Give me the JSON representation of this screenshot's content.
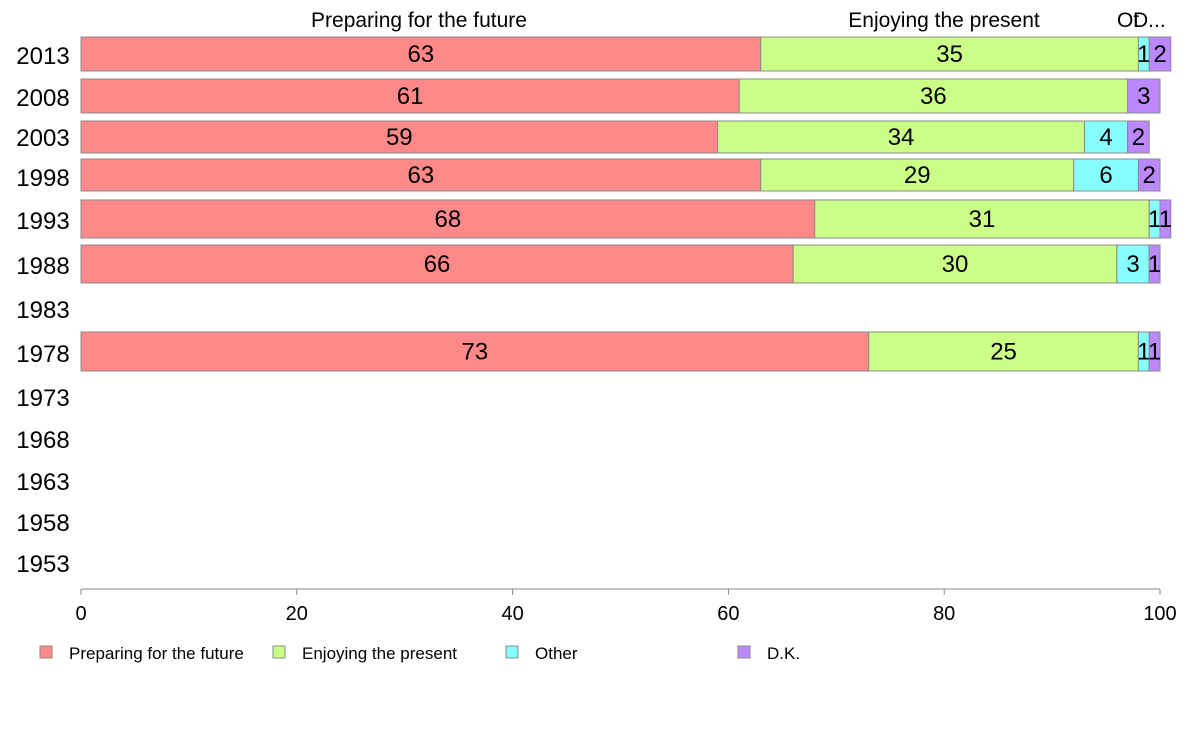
{
  "chart_data": {
    "type": "bar",
    "orientation": "horizontal",
    "stacked": true,
    "categories": [
      "2013",
      "2008",
      "2003",
      "1998",
      "1993",
      "1988",
      "1983",
      "1978",
      "1973",
      "1968",
      "1963",
      "1958",
      "1953"
    ],
    "series": [
      {
        "name": "Preparing for the future",
        "color": "#ff8888",
        "values": [
          63,
          61,
          59,
          63,
          68,
          66,
          null,
          73,
          null,
          null,
          null,
          null,
          null
        ]
      },
      {
        "name": "Enjoying the present",
        "color": "#ccff88",
        "values": [
          35,
          36,
          34,
          29,
          31,
          30,
          null,
          25,
          null,
          null,
          null,
          null,
          null
        ]
      },
      {
        "name": "Other",
        "color": "#88ffff",
        "values": [
          1,
          null,
          4,
          6,
          1,
          3,
          null,
          1,
          null,
          null,
          null,
          null,
          null
        ]
      },
      {
        "name": "D.K.",
        "color": "#bb88ff",
        "values": [
          2,
          3,
          2,
          2,
          1,
          1,
          null,
          1,
          null,
          null,
          null,
          null,
          null
        ]
      }
    ],
    "top_labels": [
      "Preparing for the future",
      "Enjoying the present",
      "Ot",
      "D..."
    ],
    "xlim": [
      0,
      100
    ],
    "xticks": [
      0,
      20,
      40,
      60,
      80,
      100
    ],
    "grid": false,
    "legend": "bottom"
  }
}
